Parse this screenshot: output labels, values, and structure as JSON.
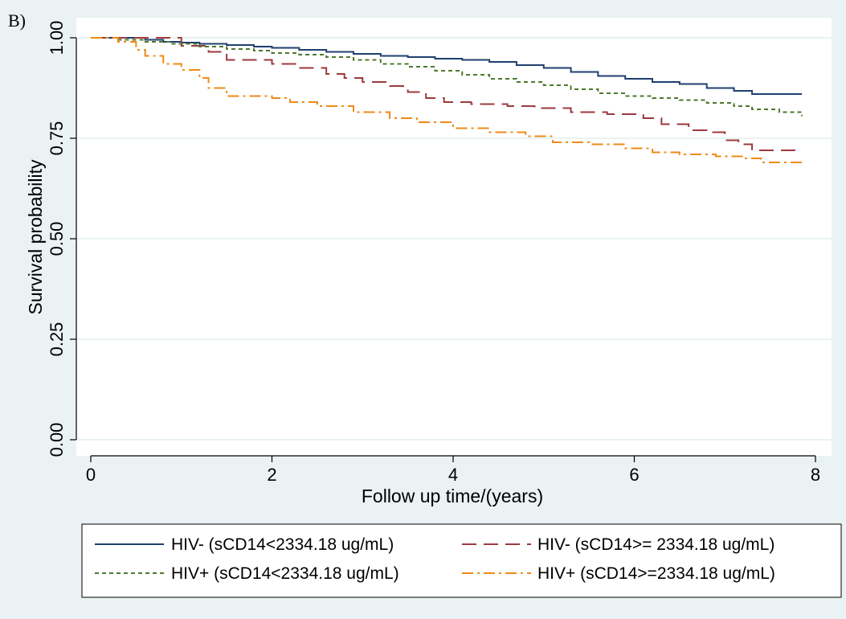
{
  "panel_label": "B)",
  "colors": {
    "background": "#eaf2f3",
    "plot_area": "#ffffff",
    "grid": "#eaf2f3",
    "axis": "#000000"
  },
  "chart_data": {
    "type": "line",
    "step": true,
    "title": "",
    "xlabel": "Follow up time/(years)",
    "ylabel": "Survival probability",
    "xlim": [
      0,
      8
    ],
    "ylim": [
      0,
      1
    ],
    "xticks": [
      0,
      2,
      4,
      6,
      8
    ],
    "xtick_labels": [
      "0",
      "2",
      "4",
      "6",
      "8"
    ],
    "yticks": [
      0,
      0.25,
      0.5,
      0.75,
      1.0
    ],
    "ytick_labels": [
      "0.00",
      "0.25",
      "0.50",
      "0.75",
      "1.00"
    ],
    "grid": true,
    "legend_position": "bottom",
    "series": [
      {
        "name": "HIV- (sCD14<2334.18 ug/mL)",
        "color": "#1f3f6f",
        "dash": "solid",
        "x": [
          0,
          0.3,
          0.6,
          0.8,
          1.0,
          1.2,
          1.5,
          1.8,
          2.0,
          2.3,
          2.6,
          2.9,
          3.2,
          3.5,
          3.8,
          4.1,
          4.4,
          4.7,
          5.0,
          5.3,
          5.6,
          5.9,
          6.2,
          6.5,
          6.8,
          7.1,
          7.3,
          7.85
        ],
        "y": [
          1.0,
          1.0,
          0.995,
          0.99,
          0.988,
          0.985,
          0.982,
          0.978,
          0.975,
          0.97,
          0.965,
          0.96,
          0.955,
          0.952,
          0.948,
          0.945,
          0.94,
          0.932,
          0.925,
          0.915,
          0.905,
          0.898,
          0.89,
          0.885,
          0.875,
          0.868,
          0.86,
          0.86
        ]
      },
      {
        "name": "HIV- (sCD14>= 2334.18 ug/mL)",
        "color": "#9c3a3e",
        "dash": "long",
        "x": [
          0,
          0.6,
          1.0,
          1.3,
          1.5,
          2.0,
          2.3,
          2.6,
          2.8,
          3.0,
          3.3,
          3.5,
          3.7,
          3.9,
          4.2,
          4.6,
          4.9,
          5.3,
          5.7,
          6.1,
          6.3,
          6.6,
          6.8,
          7.0,
          7.15,
          7.3,
          7.85
        ],
        "y": [
          1.0,
          1.0,
          0.98,
          0.965,
          0.945,
          0.935,
          0.925,
          0.91,
          0.9,
          0.89,
          0.88,
          0.865,
          0.85,
          0.84,
          0.835,
          0.83,
          0.825,
          0.815,
          0.81,
          0.8,
          0.785,
          0.77,
          0.765,
          0.745,
          0.735,
          0.72,
          0.72
        ]
      },
      {
        "name": "HIV+ (sCD14<2334.18 ug/mL)",
        "color": "#4e7a2c",
        "dash": "short",
        "x": [
          0,
          0.3,
          0.6,
          0.9,
          1.2,
          1.5,
          1.8,
          2.0,
          2.3,
          2.6,
          2.9,
          3.2,
          3.5,
          3.8,
          4.1,
          4.4,
          4.7,
          5.0,
          5.3,
          5.6,
          5.9,
          6.2,
          6.5,
          6.8,
          7.1,
          7.3,
          7.6,
          7.85
        ],
        "y": [
          1.0,
          0.995,
          0.99,
          0.985,
          0.978,
          0.972,
          0.968,
          0.962,
          0.958,
          0.952,
          0.945,
          0.935,
          0.928,
          0.918,
          0.908,
          0.898,
          0.89,
          0.882,
          0.872,
          0.862,
          0.855,
          0.85,
          0.845,
          0.838,
          0.83,
          0.822,
          0.815,
          0.805
        ]
      },
      {
        "name": "HIV+ (sCD14>=2334.18 ug/mL)",
        "color": "#ef8a14",
        "dash": "dashdot",
        "x": [
          0,
          0.3,
          0.5,
          0.6,
          0.8,
          1.0,
          1.2,
          1.3,
          1.5,
          2.0,
          2.2,
          2.5,
          2.9,
          3.3,
          3.6,
          4.0,
          4.4,
          4.8,
          5.1,
          5.5,
          5.9,
          6.2,
          6.5,
          6.9,
          7.2,
          7.4,
          7.85
        ],
        "y": [
          1.0,
          0.99,
          0.97,
          0.955,
          0.935,
          0.92,
          0.9,
          0.875,
          0.855,
          0.85,
          0.84,
          0.83,
          0.815,
          0.8,
          0.79,
          0.775,
          0.765,
          0.755,
          0.74,
          0.735,
          0.725,
          0.715,
          0.71,
          0.705,
          0.7,
          0.69,
          0.69
        ]
      }
    ]
  }
}
